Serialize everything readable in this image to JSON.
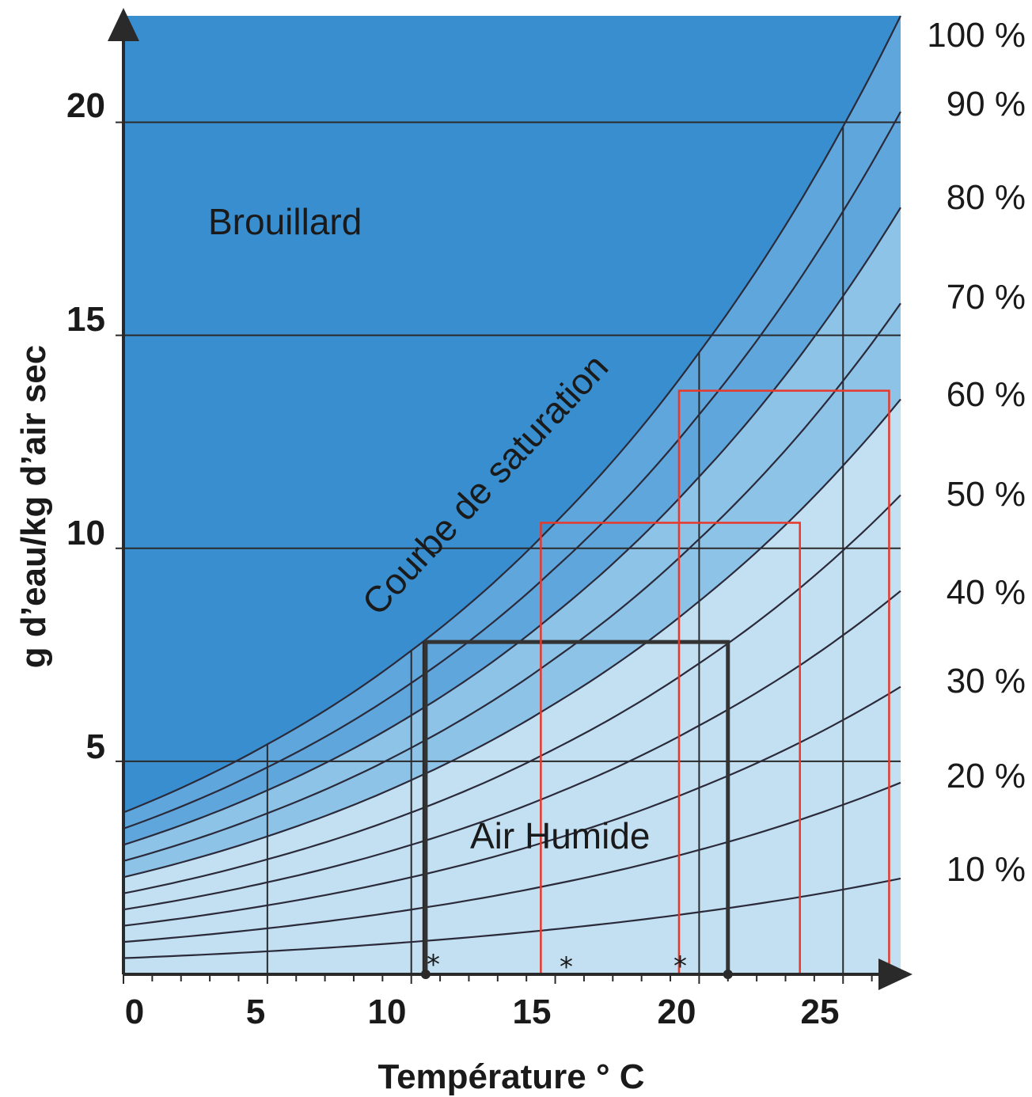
{
  "chart_data": {
    "type": "line",
    "xlabel": "Température ° C",
    "ylabel": "g d’eau/kg d’air sec",
    "xlim": [
      0,
      27
    ],
    "ylim": [
      0,
      22.5
    ],
    "x_ticks": [
      "0",
      "5",
      "10",
      "15",
      "20",
      "25"
    ],
    "x_tick_values": [
      0,
      5,
      10,
      15,
      20,
      25
    ],
    "y_ticks": [
      "5",
      "10",
      "15",
      "20"
    ],
    "y_tick_values": [
      5,
      10,
      15,
      20
    ],
    "grid": "horizontal",
    "series": [
      {
        "name": "100 %",
        "rh": 1.0
      },
      {
        "name": "90 %",
        "rh": 0.9
      },
      {
        "name": "80 %",
        "rh": 0.8
      },
      {
        "name": "70 %",
        "rh": 0.7
      },
      {
        "name": "60 %",
        "rh": 0.6
      },
      {
        "name": "50 %",
        "rh": 0.5
      },
      {
        "name": "40 %",
        "rh": 0.4
      },
      {
        "name": "30 %",
        "rh": 0.3
      },
      {
        "name": "20 %",
        "rh": 0.2
      },
      {
        "name": "10 %",
        "rh": 0.1
      }
    ],
    "saturation_curve_points": [
      [
        0,
        3.8
      ],
      [
        5,
        5.4
      ],
      [
        10,
        7.6
      ],
      [
        15,
        10.6
      ],
      [
        20,
        14.6
      ],
      [
        25,
        19.9
      ],
      [
        27,
        22.5
      ]
    ],
    "annotations": {
      "fog_region": "Brouillard",
      "saturation_curve": "Courbe de saturation",
      "humid_air_region": "Air Humide",
      "markers": [
        "*",
        "*",
        "*"
      ]
    },
    "processes": [
      {
        "color": "#333333",
        "x_start": 10.5,
        "x_end": 21.0,
        "y": 7.8,
        "marker_x": 10.8
      },
      {
        "color": "#e8382a",
        "x_start": 14.5,
        "x_end": 23.5,
        "y": 10.6,
        "marker_x": 15.0
      },
      {
        "color": "#e8382a",
        "x_start": 19.3,
        "x_end": 26.6,
        "y": 13.7,
        "marker_x": 19.3
      }
    ],
    "dewpoint_verticals": [
      5,
      10,
      20,
      25
    ],
    "colors": {
      "fog": "#388ece",
      "band_dark": "#5fa6dc",
      "band_mid": "#8ec3e8",
      "band_light": "#c3e0f2",
      "curve": "#2a2a3a",
      "highlight": "#e8382a"
    }
  }
}
